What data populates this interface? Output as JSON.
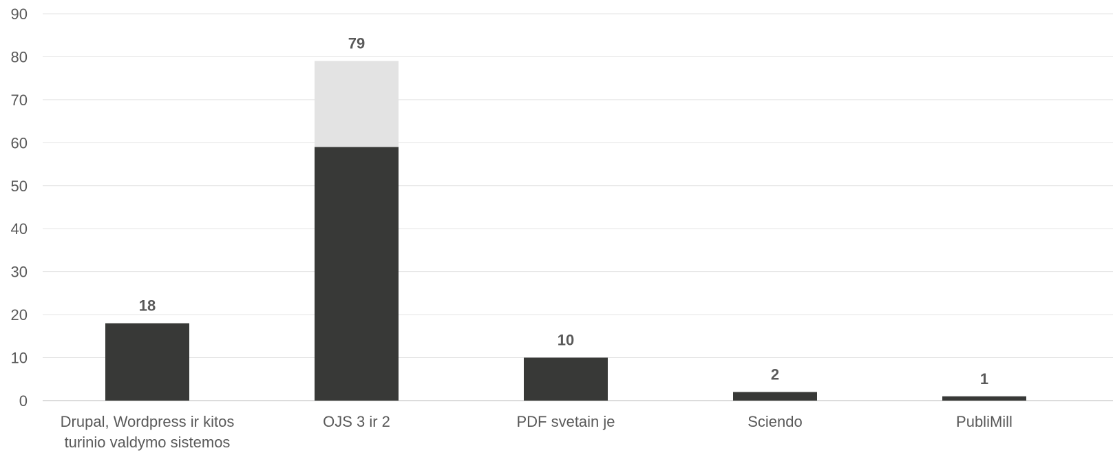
{
  "chart_data": {
    "type": "bar",
    "stacked": true,
    "categories": [
      [
        "Drupal, Wordpress ir kitos",
        "turinio valdymo sistemos"
      ],
      [
        "OJS 3 ir 2"
      ],
      [
        "PDF svetain  je"
      ],
      [
        "Sciendo"
      ],
      [
        "PubliMill"
      ]
    ],
    "series": [
      {
        "values": [
          18,
          59,
          10,
          2,
          1
        ],
        "color": "#383937"
      },
      {
        "values": [
          0,
          20,
          0,
          0,
          0
        ],
        "color": "#e3e3e3"
      }
    ],
    "totals": [
      "18",
      "79",
      "10",
      "2",
      "1"
    ],
    "ylim": [
      0,
      90
    ],
    "yticks": [
      0,
      10,
      20,
      30,
      40,
      50,
      60,
      70,
      80,
      90
    ],
    "grid": true,
    "title": "",
    "xlabel": "",
    "ylabel": ""
  }
}
